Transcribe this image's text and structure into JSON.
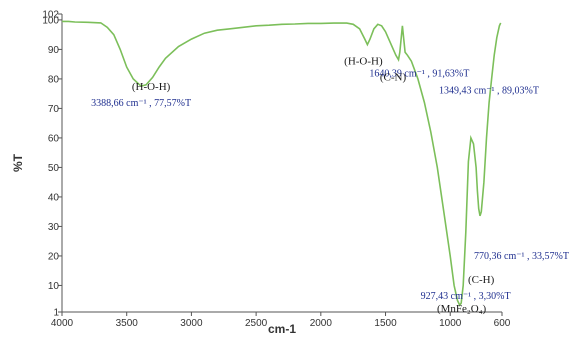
{
  "chart_data": {
    "type": "line",
    "title": "",
    "xlabel": "cm-1",
    "ylabel": "%T",
    "xlim": [
      4000,
      600
    ],
    "x_reversed": true,
    "ylim": [
      1,
      102
    ],
    "xticks": [
      4000,
      3500,
      3000,
      2500,
      2000,
      1500,
      1000,
      600
    ],
    "yticks": [
      1,
      10,
      20,
      30,
      40,
      50,
      60,
      70,
      80,
      90,
      100,
      102
    ],
    "grid": false,
    "legend": "none",
    "line_color": "#7cbf5a",
    "series": [
      {
        "x": [
          4000,
          3950,
          3900,
          3800,
          3700,
          3650,
          3600,
          3550,
          3500,
          3450,
          3400,
          3388,
          3350,
          3300,
          3250,
          3200,
          3100,
          3000,
          2900,
          2800,
          2700,
          2600,
          2500,
          2400,
          2300,
          2200,
          2100,
          2000,
          1900,
          1800,
          1750,
          1700,
          1660,
          1640,
          1620,
          1590,
          1560,
          1530,
          1500,
          1470,
          1440,
          1420,
          1400,
          1390,
          1370,
          1349,
          1330,
          1300,
          1250,
          1200,
          1150,
          1100,
          1050,
          1000,
          970,
          945,
          927,
          915,
          900,
          880,
          860,
          840,
          820,
          800,
          790,
          780,
          770,
          760,
          740,
          720,
          700,
          680,
          660,
          640,
          620,
          610
        ],
        "y": [
          99.5,
          99.5,
          99.3,
          99.2,
          99.0,
          97.5,
          95.0,
          90.0,
          84.0,
          80.0,
          78.0,
          77.57,
          78.0,
          80.5,
          84.0,
          87.0,
          91.0,
          93.5,
          95.5,
          96.5,
          97.0,
          97.5,
          98.0,
          98.2,
          98.5,
          98.6,
          98.8,
          98.8,
          98.9,
          98.9,
          98.5,
          97.0,
          93.5,
          91.63,
          93.5,
          97.0,
          98.5,
          98.0,
          96.0,
          93.0,
          90.0,
          88.0,
          86.5,
          89.0,
          98.0,
          89.03,
          88.0,
          86.0,
          80.0,
          72.0,
          62.0,
          50.0,
          35.0,
          20.0,
          10.0,
          5.0,
          3.3,
          4.0,
          10.0,
          28.0,
          52.0,
          60.0,
          58.0,
          50.0,
          42.0,
          36.0,
          33.57,
          35.0,
          45.0,
          60.0,
          72.0,
          80.0,
          88.0,
          94.0,
          98.0,
          99.0
        ]
      }
    ],
    "annotations": [
      {
        "text": "(H-O-H)",
        "x": 3388.66,
        "y": 77.57,
        "style": "label"
      },
      {
        "text": "3388,66 cm⁻¹ , 77,57%T",
        "x": 3388.66,
        "y": 77.57,
        "style": "value"
      },
      {
        "text": "(H-O-H)",
        "x": 1640.39,
        "y": 91.63,
        "style": "label"
      },
      {
        "text": "1640,39 cm⁻¹ , 91,63%T",
        "x": 1640.39,
        "y": 91.63,
        "style": "value"
      },
      {
        "text": "(C-N)",
        "x": 1349.43,
        "y": 89.03,
        "style": "label"
      },
      {
        "text": "1349,43 cm⁻¹ , 89,03%T",
        "x": 1349.43,
        "y": 89.03,
        "style": "value"
      },
      {
        "text": "770,36 cm⁻¹ , 33,57%T",
        "x": 770.36,
        "y": 33.57,
        "style": "value"
      },
      {
        "text": "(C-H)",
        "x": 770.36,
        "y": 33.57,
        "style": "label"
      },
      {
        "text": "927,43 cm⁻¹ , 3,30%T",
        "x": 927.43,
        "y": 3.3,
        "style": "value"
      },
      {
        "text": "(MnFe₂O₄)",
        "x": 927.43,
        "y": 3.3,
        "style": "label"
      }
    ]
  }
}
